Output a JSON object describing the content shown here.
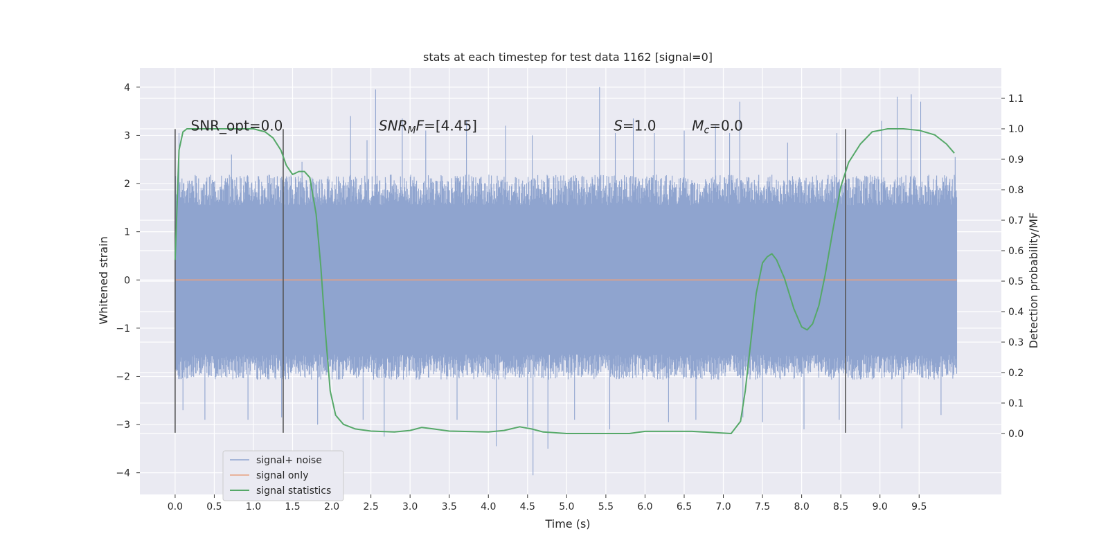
{
  "chart_data": {
    "type": "line",
    "title": "stats at each timestep for test data 1162 [signal=0]",
    "xlabel": "Time (s)",
    "ylabel_left": "Whitened strain",
    "ylabel_right": "Detection probability/MF",
    "xlim": [
      -0.45,
      10.55
    ],
    "ylim_left": [
      -4.45,
      4.4
    ],
    "ylim_right": [
      -0.2,
      1.2
    ],
    "x_ticks": [
      "0.0",
      "0.5",
      "1.0",
      "1.5",
      "2.0",
      "2.5",
      "3.0",
      "3.5",
      "4.0",
      "4.5",
      "5.0",
      "5.5",
      "6.0",
      "6.5",
      "7.0",
      "7.5",
      "8.0",
      "8.5",
      "9.0",
      "9.5"
    ],
    "y_left_ticks": [
      "4",
      "3",
      "2",
      "1",
      "0",
      "−1",
      "−2",
      "−3",
      "−4"
    ],
    "y_right_ticks": [
      "1.1",
      "1.0",
      "0.9",
      "0.8",
      "0.7",
      "0.6",
      "0.5",
      "0.4",
      "0.3",
      "0.2",
      "0.1",
      "0.0"
    ],
    "grid": true,
    "legend_position": "lower-left",
    "annotations": [
      {
        "plain": "SNR_opt=0.0",
        "x": 0.2,
        "y": 3.1
      },
      {
        "italic": "SNR",
        "sub": "M",
        "rest_italic": "F",
        "rest": "=[4.45]",
        "x": 2.6,
        "y": 3.1
      },
      {
        "italic": "S",
        "rest": "=1.0",
        "x": 5.6,
        "y": 3.1
      },
      {
        "italic": "M",
        "sub": "c",
        "rest": "=0.0",
        "x": 6.6,
        "y": 3.1
      }
    ],
    "vertical_markers": [
      0.0,
      1.38,
      8.56
    ],
    "vertical_marker_range": [
      -3.17,
      3.13
    ],
    "series": [
      {
        "name": "signal+ noise",
        "color": "#8fa4cf",
        "x_range": [
          0.0,
          9.98
        ],
        "core_band": [
          -1.3,
          1.25
        ],
        "envelope": [
          -2.0,
          2.1
        ],
        "peaks": [
          [
            0.05,
            3.05
          ],
          [
            0.72,
            2.6
          ],
          [
            1.62,
            2.45
          ],
          [
            2.24,
            3.4
          ],
          [
            2.45,
            2.9
          ],
          [
            2.56,
            3.95
          ],
          [
            2.9,
            3.35
          ],
          [
            3.2,
            3.1
          ],
          [
            3.72,
            3.3
          ],
          [
            4.22,
            3.2
          ],
          [
            4.56,
            3.0
          ],
          [
            5.42,
            4.0
          ],
          [
            5.62,
            3.05
          ],
          [
            5.85,
            3.35
          ],
          [
            6.12,
            3.05
          ],
          [
            6.5,
            3.1
          ],
          [
            6.9,
            3.2
          ],
          [
            7.08,
            3.05
          ],
          [
            7.21,
            3.7
          ],
          [
            7.82,
            2.85
          ],
          [
            8.45,
            3.05
          ],
          [
            9.02,
            3.3
          ],
          [
            9.22,
            3.8
          ],
          [
            9.4,
            3.85
          ],
          [
            9.52,
            3.7
          ],
          [
            9.96,
            2.55
          ]
        ],
        "troughs": [
          [
            0.1,
            -2.7
          ],
          [
            0.38,
            -2.9
          ],
          [
            0.93,
            -2.9
          ],
          [
            1.36,
            -2.85
          ],
          [
            1.82,
            -3.0
          ],
          [
            2.4,
            -2.9
          ],
          [
            2.67,
            -3.25
          ],
          [
            3.6,
            -2.9
          ],
          [
            4.1,
            -3.45
          ],
          [
            4.5,
            -3.05
          ],
          [
            4.57,
            -4.05
          ],
          [
            4.76,
            -3.5
          ],
          [
            5.1,
            -2.9
          ],
          [
            5.55,
            -3.1
          ],
          [
            6.3,
            -2.95
          ],
          [
            6.65,
            -2.9
          ],
          [
            7.25,
            -2.85
          ],
          [
            7.5,
            -2.95
          ],
          [
            8.03,
            -3.1
          ],
          [
            8.48,
            -2.9
          ],
          [
            9.28,
            -3.08
          ],
          [
            9.78,
            -2.8
          ]
        ]
      },
      {
        "name": "signal only",
        "color": "#e8a07e",
        "x": [
          0.0,
          9.98
        ],
        "y": [
          0.0,
          0.0
        ]
      },
      {
        "name": "signal statistics",
        "color": "#55a868",
        "axis": "right",
        "x": [
          0.0,
          0.05,
          0.1,
          0.15,
          0.2,
          0.4,
          0.6,
          0.8,
          1.0,
          1.15,
          1.25,
          1.35,
          1.42,
          1.5,
          1.58,
          1.65,
          1.72,
          1.8,
          1.86,
          1.92,
          1.98,
          2.05,
          2.15,
          2.3,
          2.5,
          2.8,
          3.0,
          3.15,
          3.3,
          3.5,
          4.0,
          4.2,
          4.4,
          4.55,
          4.7,
          5.0,
          5.5,
          5.8,
          6.0,
          6.3,
          6.6,
          6.9,
          7.1,
          7.22,
          7.28,
          7.35,
          7.42,
          7.5,
          7.56,
          7.62,
          7.68,
          7.78,
          7.9,
          8.0,
          8.07,
          8.14,
          8.22,
          8.3,
          8.4,
          8.5,
          8.6,
          8.75,
          8.9,
          9.1,
          9.3,
          9.5,
          9.7,
          9.85,
          9.95
        ],
        "y": [
          0.57,
          0.93,
          0.99,
          1.0,
          1.0,
          1.0,
          1.0,
          1.0,
          1.0,
          0.99,
          0.97,
          0.93,
          0.88,
          0.85,
          0.86,
          0.86,
          0.84,
          0.72,
          0.55,
          0.33,
          0.14,
          0.06,
          0.03,
          0.015,
          0.008,
          0.005,
          0.01,
          0.02,
          0.015,
          0.008,
          0.005,
          0.01,
          0.022,
          0.015,
          0.005,
          0.0,
          0.0,
          0.0,
          0.007,
          0.007,
          0.007,
          0.003,
          0.0,
          0.04,
          0.14,
          0.3,
          0.46,
          0.56,
          0.58,
          0.59,
          0.57,
          0.51,
          0.41,
          0.35,
          0.34,
          0.36,
          0.42,
          0.52,
          0.67,
          0.81,
          0.89,
          0.95,
          0.99,
          1.0,
          1.0,
          0.995,
          0.98,
          0.95,
          0.92
        ]
      }
    ]
  }
}
